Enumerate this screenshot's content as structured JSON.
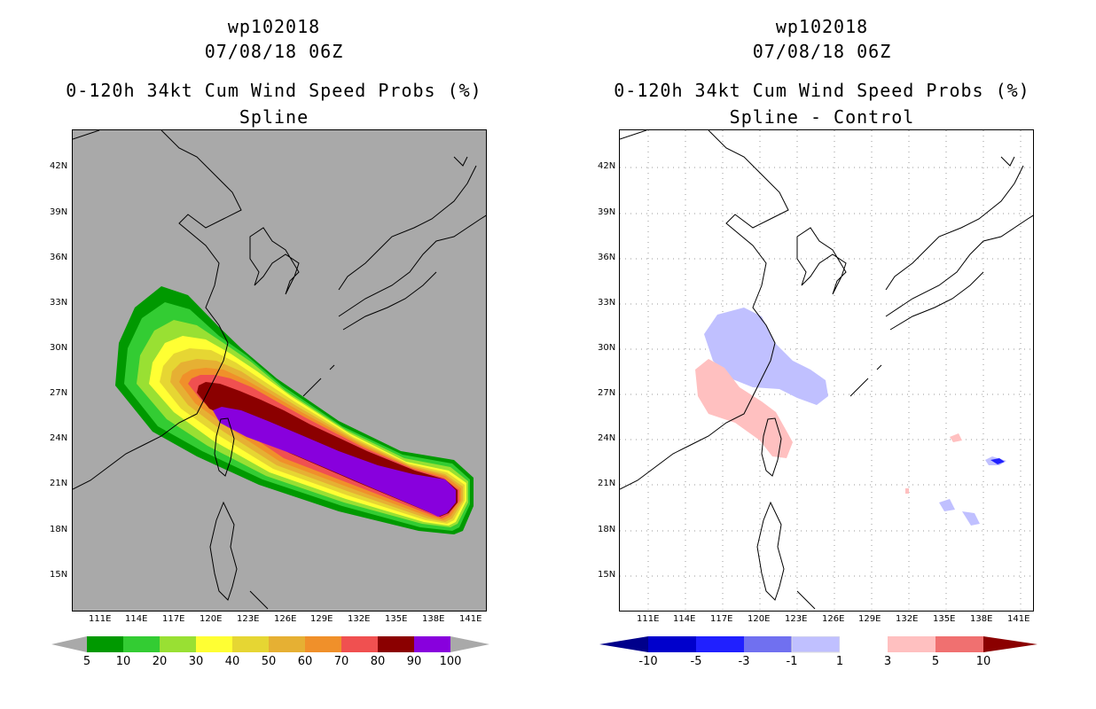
{
  "left": {
    "title1": "wp102018",
    "title2": "07/08/18 06Z",
    "title3": "0-120h 34kt Cum Wind Speed Probs (%)",
    "title4": "Spline",
    "lat_labels": [
      "42N",
      "39N",
      "36N",
      "33N",
      "30N",
      "27N",
      "24N",
      "21N",
      "18N",
      "15N"
    ],
    "lon_labels": [
      "111E",
      "114E",
      "117E",
      "120E",
      "123E",
      "126E",
      "129E",
      "132E",
      "135E",
      "138E",
      "141E"
    ],
    "colorbar": {
      "labels": [
        "5",
        "10",
        "20",
        "30",
        "40",
        "50",
        "60",
        "70",
        "80",
        "90",
        "100"
      ],
      "colors": [
        "#009900",
        "#33cc33",
        "#99e033",
        "#ffff33",
        "#e6d633",
        "#e6b033",
        "#f0902a",
        "#f05050",
        "#8b0000",
        "#8800dd"
      ],
      "end_color": "#a9a9a9"
    }
  },
  "right": {
    "title1": "wp102018",
    "title2": "07/08/18 06Z",
    "title3": "0-120h 34kt Cum Wind Speed Probs (%)",
    "title4": "Spline - Control",
    "lat_labels": [
      "42N",
      "39N",
      "36N",
      "33N",
      "30N",
      "27N",
      "24N",
      "21N",
      "18N",
      "15N"
    ],
    "lon_labels": [
      "111E",
      "114E",
      "117E",
      "120E",
      "123E",
      "126E",
      "129E",
      "132E",
      "135E",
      "138E",
      "141E"
    ],
    "colorbar": {
      "labels": [
        "-10",
        "-5",
        "-3",
        "-1",
        "1",
        "3",
        "5",
        "10"
      ],
      "colors": [
        "#0000cc",
        "#2020ff",
        "#7070f0",
        "#c0c0ff",
        "#ffffff",
        "#ffc0c0",
        "#f07070",
        "#ff0000",
        "#8b0000"
      ],
      "left_end_color": "#00008b",
      "right_end_color": "#8b0000"
    }
  }
}
